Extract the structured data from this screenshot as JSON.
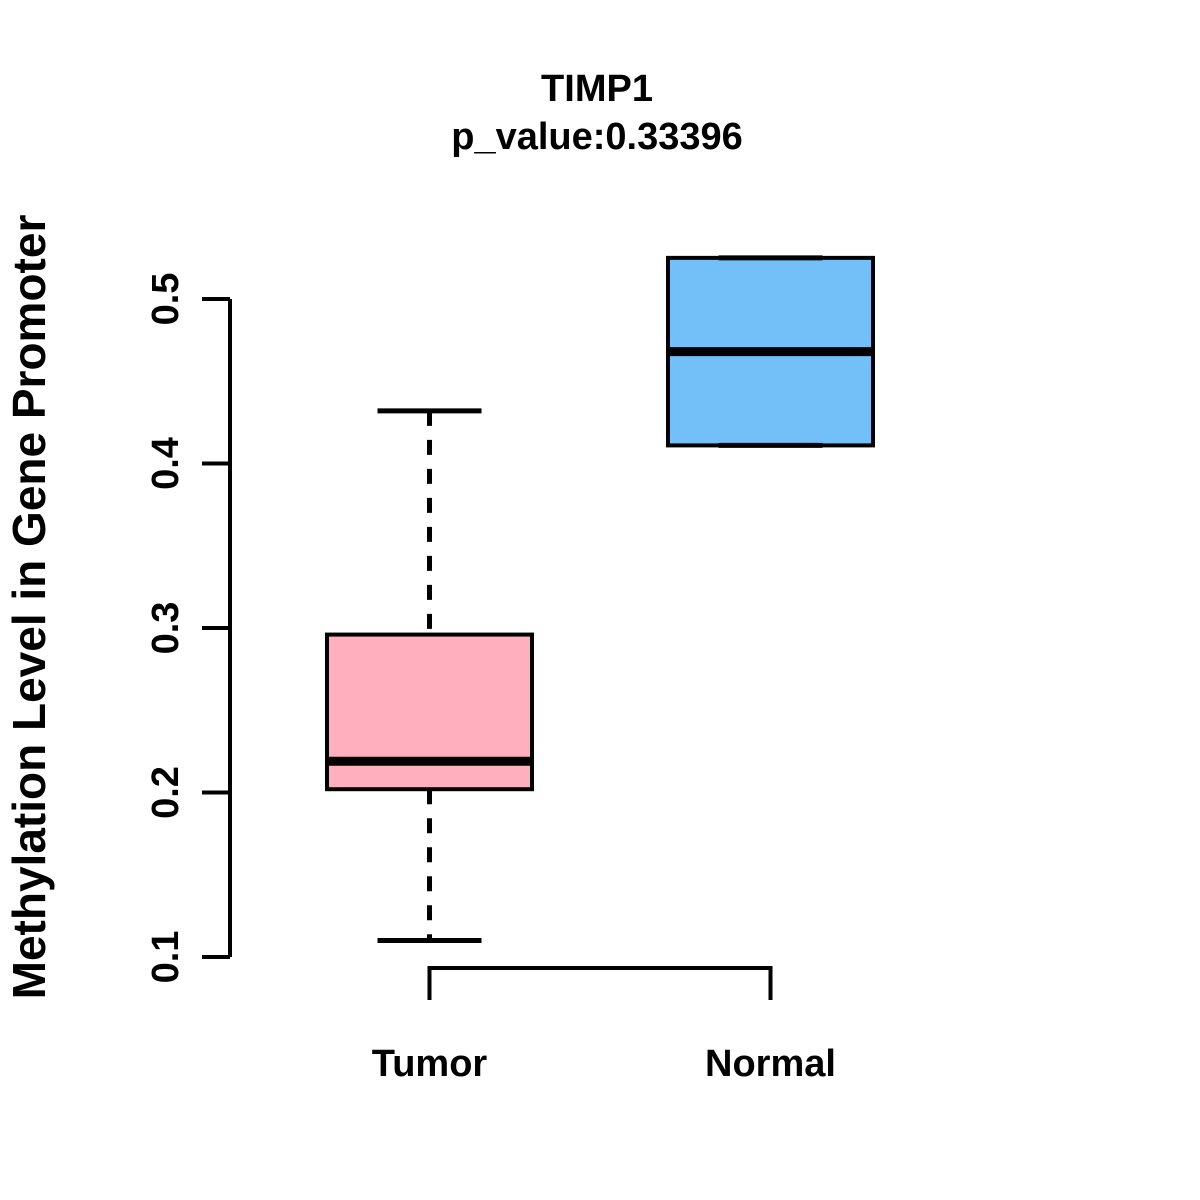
{
  "figure": {
    "background_color": "#FFFFFF",
    "text_color": "#000000"
  },
  "chart_data": {
    "type": "boxplot",
    "title": "TIMP1",
    "subtitle": "p_value:0.33396",
    "ylabel": "Methylation Level in Gene Promoter",
    "xlabel": "",
    "legend": "none",
    "grid": false,
    "y_axis": {
      "ticks": [
        "0.1",
        "0.2",
        "0.3",
        "0.4",
        "0.5"
      ],
      "tick_values": [
        0.1,
        0.2,
        0.3,
        0.4,
        0.5
      ],
      "range": [
        0.1,
        0.5
      ]
    },
    "categories": [
      "Tumor",
      "Normal"
    ],
    "series": [
      {
        "name": "Tumor",
        "fill_color": "#FFAFBE",
        "whisker_low": 0.11,
        "q1": 0.202,
        "median": 0.219,
        "q3": 0.296,
        "whisker_high": 0.432
      },
      {
        "name": "Normal",
        "fill_color": "#73BFF8",
        "whisker_low": 0.411,
        "q1": 0.411,
        "median": 0.468,
        "q3": 0.525,
        "whisker_high": 0.525
      }
    ],
    "box_border_color": "#000000",
    "median_line_color": "#000000",
    "whisker_style": "dashed"
  }
}
